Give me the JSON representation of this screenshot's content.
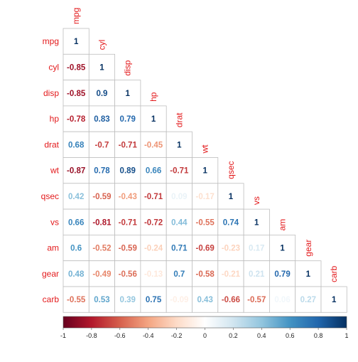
{
  "chart_data": {
    "type": "heatmap",
    "variables": [
      "mpg",
      "cyl",
      "disp",
      "hp",
      "drat",
      "wt",
      "qsec",
      "vs",
      "am",
      "gear",
      "carb"
    ],
    "matrix": [
      [
        1
      ],
      [
        -0.85,
        1
      ],
      [
        -0.85,
        0.9,
        1
      ],
      [
        -0.78,
        0.83,
        0.79,
        1
      ],
      [
        0.68,
        -0.7,
        -0.71,
        -0.45,
        1
      ],
      [
        -0.87,
        0.78,
        0.89,
        0.66,
        -0.71,
        1
      ],
      [
        0.42,
        -0.59,
        -0.43,
        -0.71,
        0.09,
        -0.17,
        1
      ],
      [
        0.66,
        -0.81,
        -0.71,
        -0.72,
        0.44,
        -0.55,
        0.74,
        1
      ],
      [
        0.6,
        -0.52,
        -0.59,
        -0.24,
        0.71,
        -0.69,
        -0.23,
        0.17,
        1
      ],
      [
        0.48,
        -0.49,
        -0.56,
        -0.13,
        0.7,
        -0.58,
        -0.21,
        0.21,
        0.79,
        1
      ],
      [
        -0.55,
        0.53,
        0.39,
        0.75,
        -0.09,
        0.43,
        -0.66,
        -0.57,
        0.06,
        0.27,
        1
      ]
    ],
    "colorbar": {
      "range": [
        -1,
        1
      ],
      "ticks": [
        -1,
        -0.8,
        -0.6,
        -0.4,
        -0.2,
        0,
        0.2,
        0.4,
        0.6,
        0.8,
        1
      ],
      "colors": [
        "#67001f",
        "#b2182b",
        "#d6604d",
        "#f4a582",
        "#fddbc7",
        "#ffffff",
        "#d1e5f0",
        "#92c5de",
        "#4393c3",
        "#2166ac",
        "#053061"
      ]
    },
    "label_color": "#e31a1c",
    "grid_color": "#bebebe"
  }
}
